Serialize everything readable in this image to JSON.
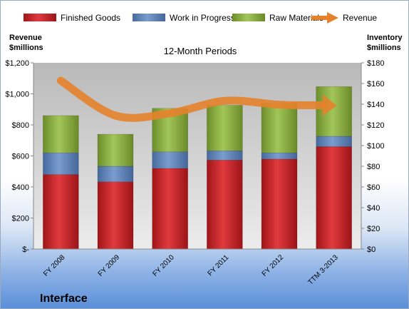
{
  "footer": {
    "company": "Interface"
  },
  "colors": {
    "finished_goods": "#c8262b",
    "work_in_progress": "#5b7fb2",
    "raw_materials": "#8aae3c",
    "revenue": "#e6822c"
  },
  "chart_data": {
    "type": "bar",
    "stacked": true,
    "title": "12-Month Periods",
    "y_left_label": "Revenue\n$millions",
    "y_right_label": "Inventory\n$millions",
    "categories": [
      "FY 2008",
      "FY 2009",
      "FY 2010",
      "FY 2011",
      "FY 2012",
      "TTM 3-2013"
    ],
    "y_left_ticks": [
      "$-",
      "$200",
      "$400",
      "$600",
      "$800",
      "$1,000",
      "$1,200"
    ],
    "y_right_ticks": [
      "$0",
      "$20",
      "$40",
      "$60",
      "$80",
      "$100",
      "$120",
      "$140",
      "$160",
      "$180"
    ],
    "ylim_left": [
      0,
      1200
    ],
    "ylim_right": [
      0,
      180
    ],
    "series": [
      {
        "name": "Finished Goods",
        "axis": "right",
        "values": [
          72,
          65,
          78,
          86,
          87,
          99
        ]
      },
      {
        "name": "Work in Progress",
        "axis": "right",
        "values": [
          21,
          15,
          16,
          9,
          6,
          10
        ]
      },
      {
        "name": "Raw Materials",
        "axis": "right",
        "values": [
          36,
          31,
          42,
          44,
          48,
          48
        ]
      },
      {
        "name": "Revenue",
        "axis": "left",
        "type": "line",
        "values": [
          1085,
          860,
          875,
          955,
          930,
          925
        ]
      }
    ],
    "legend_position": "top",
    "grid": false
  }
}
